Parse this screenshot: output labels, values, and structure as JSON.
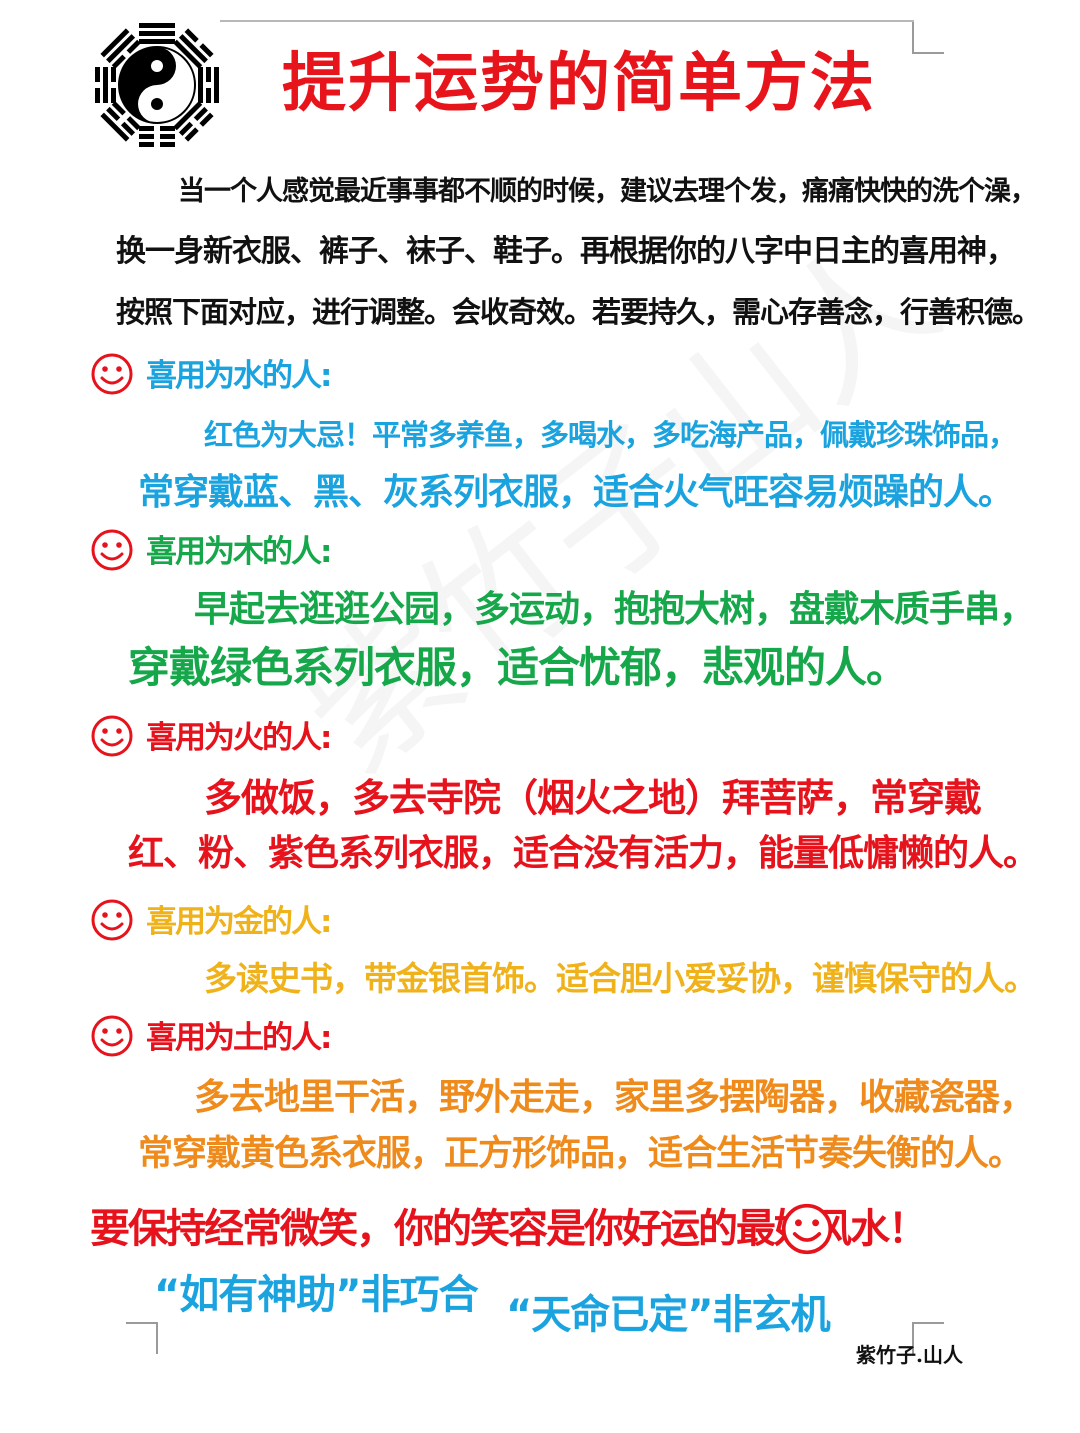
{
  "title": "提升运势的简单方法",
  "intro": {
    "lines": [
      "当一个人感觉最近事事都不顺的时候，建议去理个发，痛痛快快的洗个澡，",
      "换一身新衣服、裤子、袜子、鞋子。再根据你的八字中日主的喜用神，",
      "按照下面对应，进行调整。会收奇效。若要持久，需心存善念，行善积德。"
    ]
  },
  "sections": [
    {
      "heading": "喜用为水的人:",
      "lines": [
        "红色为大忌！平常多养鱼，多喝水，多吃海产品，佩戴珍珠饰品，",
        "常穿戴蓝、黑、灰系列衣服，适合火气旺容易烦躁的人。"
      ],
      "color": "#1aa3de"
    },
    {
      "heading": "喜用为木的人:",
      "lines": [
        "早起去逛逛公园，多运动，抱抱大树，盘戴木质手串，",
        "穿戴绿色系列衣服，适合忧郁，悲观的人。"
      ],
      "color": "#15a74a"
    },
    {
      "heading": "喜用为火的人:",
      "lines": [
        "多做饭，多去寺院（烟火之地）拜菩萨，常穿戴",
        "红、粉、紫色系列衣服，适合没有活力，能量低慵懒的人。"
      ],
      "color": "#e6121c"
    },
    {
      "heading": "喜用为金的人:",
      "lines": [
        "多读史书，带金银首饰。适合胆小爱妥协，谨慎保守的人。"
      ],
      "color": "#f0b21a"
    },
    {
      "heading": "喜用为土的人:",
      "lines": [
        "多去地里干活，野外走走，家里多摆陶器，收藏瓷器，",
        "常穿戴黄色系衣服，正方形饰品，适合生活节奏失衡的人。"
      ],
      "color": "#ee8b1c"
    }
  ],
  "closing": "要保持经常微笑，你的笑容是你好运的最好风水！",
  "slogans": [
    "“如有神助”非巧合",
    "“天命已定”非玄机"
  ],
  "author": "紫竹子.山人",
  "icons": {
    "logo": "yin-yang-bagua-icon",
    "smiley": "smiley-face-icon"
  }
}
